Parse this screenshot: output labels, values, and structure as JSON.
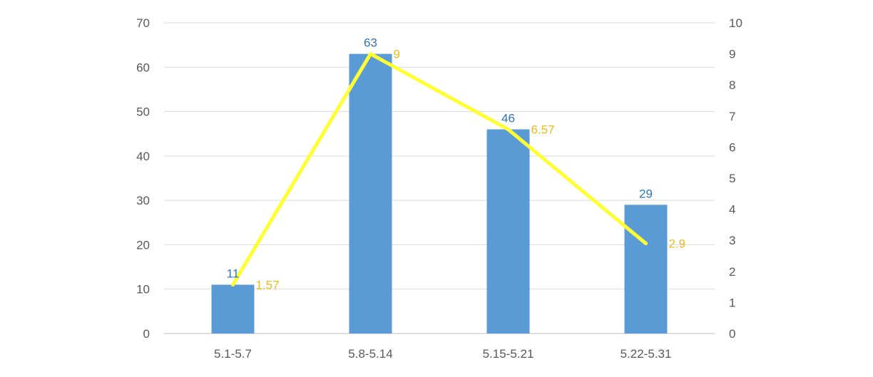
{
  "chart_data": {
    "type": "bar",
    "title": "",
    "xlabel": "",
    "ylabel": "",
    "categories": [
      "5.1-5.7",
      "5.8-5.14",
      "5.15-5.21",
      "5.22-5.31"
    ],
    "series": [
      {
        "type": "bar",
        "axis": "left",
        "values": [
          11,
          63,
          46,
          29
        ],
        "color": "#5B9BD5",
        "label_color": "#2E75B6",
        "value_labels": [
          "11",
          "63",
          "46",
          "29"
        ]
      },
      {
        "type": "line",
        "axis": "right",
        "values": [
          1.57,
          9,
          6.57,
          2.9
        ],
        "color": "#FFFF33",
        "label_color": "#E8BC1C",
        "value_labels": [
          "1.57",
          "9",
          "6.57",
          "2.9"
        ]
      }
    ],
    "ylim": [
      0,
      70
    ],
    "y_ticks": [
      "0",
      "10",
      "20",
      "30",
      "40",
      "50",
      "60",
      "70"
    ],
    "y2lim": [
      0,
      10
    ],
    "y2_ticks": [
      "0",
      "1",
      "2",
      "3",
      "4",
      "5",
      "6",
      "7",
      "8",
      "9",
      "10"
    ],
    "grid": true,
    "legend": "none"
  }
}
